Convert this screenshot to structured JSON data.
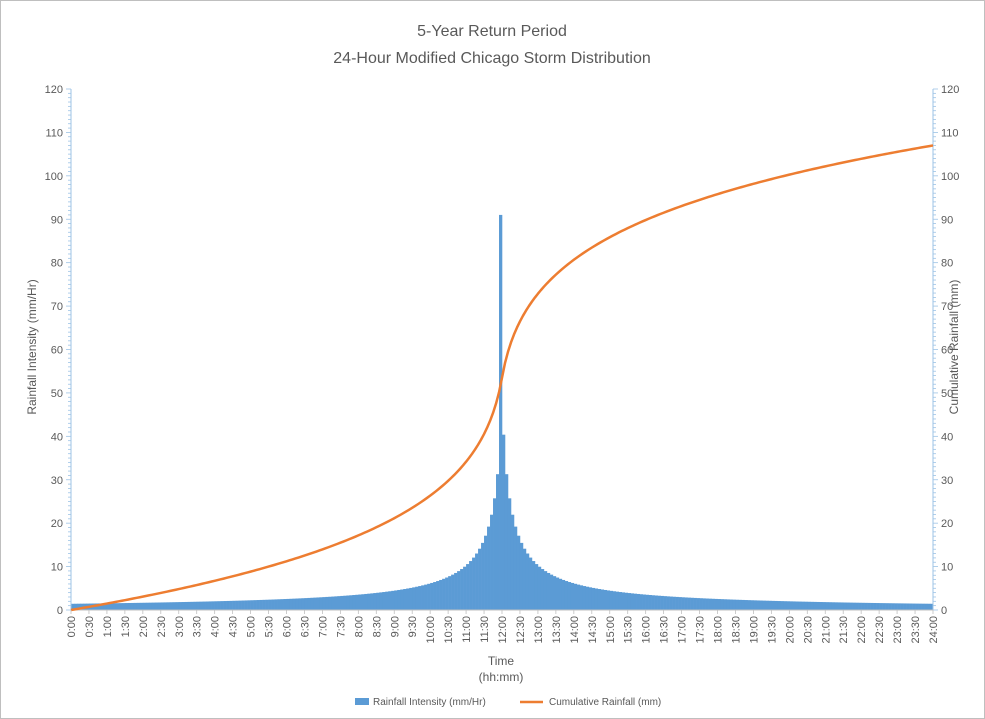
{
  "chart_data": {
    "type": "bar",
    "title": "5-Year Return Period",
    "subtitle": "24-Hour Modified Chicago Storm Distribution",
    "xlabel": "Time",
    "xlabel_units": "(hh:mm)",
    "ylabel_left": "Rainfall Intensity (mm/Hr)",
    "ylabel_right": "Cumulative Rainfall (mm)",
    "ylim_left": [
      0,
      120
    ],
    "ylim_right": [
      0,
      120
    ],
    "yticks": [
      "0",
      "10",
      "20",
      "30",
      "40",
      "50",
      "60",
      "70",
      "80",
      "90",
      "100",
      "110",
      "120"
    ],
    "xticks": [
      "0:00",
      "0:30",
      "1:00",
      "1:30",
      "2:00",
      "2:30",
      "3:00",
      "3:30",
      "4:00",
      "4:30",
      "5:00",
      "5:30",
      "6:00",
      "6:30",
      "7:00",
      "7:30",
      "8:00",
      "8:30",
      "9:00",
      "9:30",
      "10:00",
      "10:30",
      "11:00",
      "11:30",
      "12:00",
      "12:30",
      "13:00",
      "13:30",
      "14:00",
      "14:30",
      "15:00",
      "15:30",
      "16:00",
      "16:30",
      "17:00",
      "17:30",
      "18:00",
      "18:30",
      "19:00",
      "19:30",
      "20:00",
      "20:30",
      "21:00",
      "21:30",
      "22:00",
      "22:30",
      "23:00",
      "23:30",
      "24:00"
    ],
    "grid": false,
    "legend_position": "bottom",
    "storm": {
      "duration_hours": 24,
      "time_step_minutes": 5,
      "peak_time_hours": 12,
      "peak_intensity": 91,
      "total_depth_mm": 107
    },
    "series": [
      {
        "name": "Rainfall Intensity (mm/Hr)",
        "type": "bar",
        "axis": "left",
        "color": "#5B9BD5"
      },
      {
        "name": "Cumulative Rainfall (mm)",
        "type": "line",
        "axis": "right",
        "color": "#ED7D31"
      }
    ]
  }
}
